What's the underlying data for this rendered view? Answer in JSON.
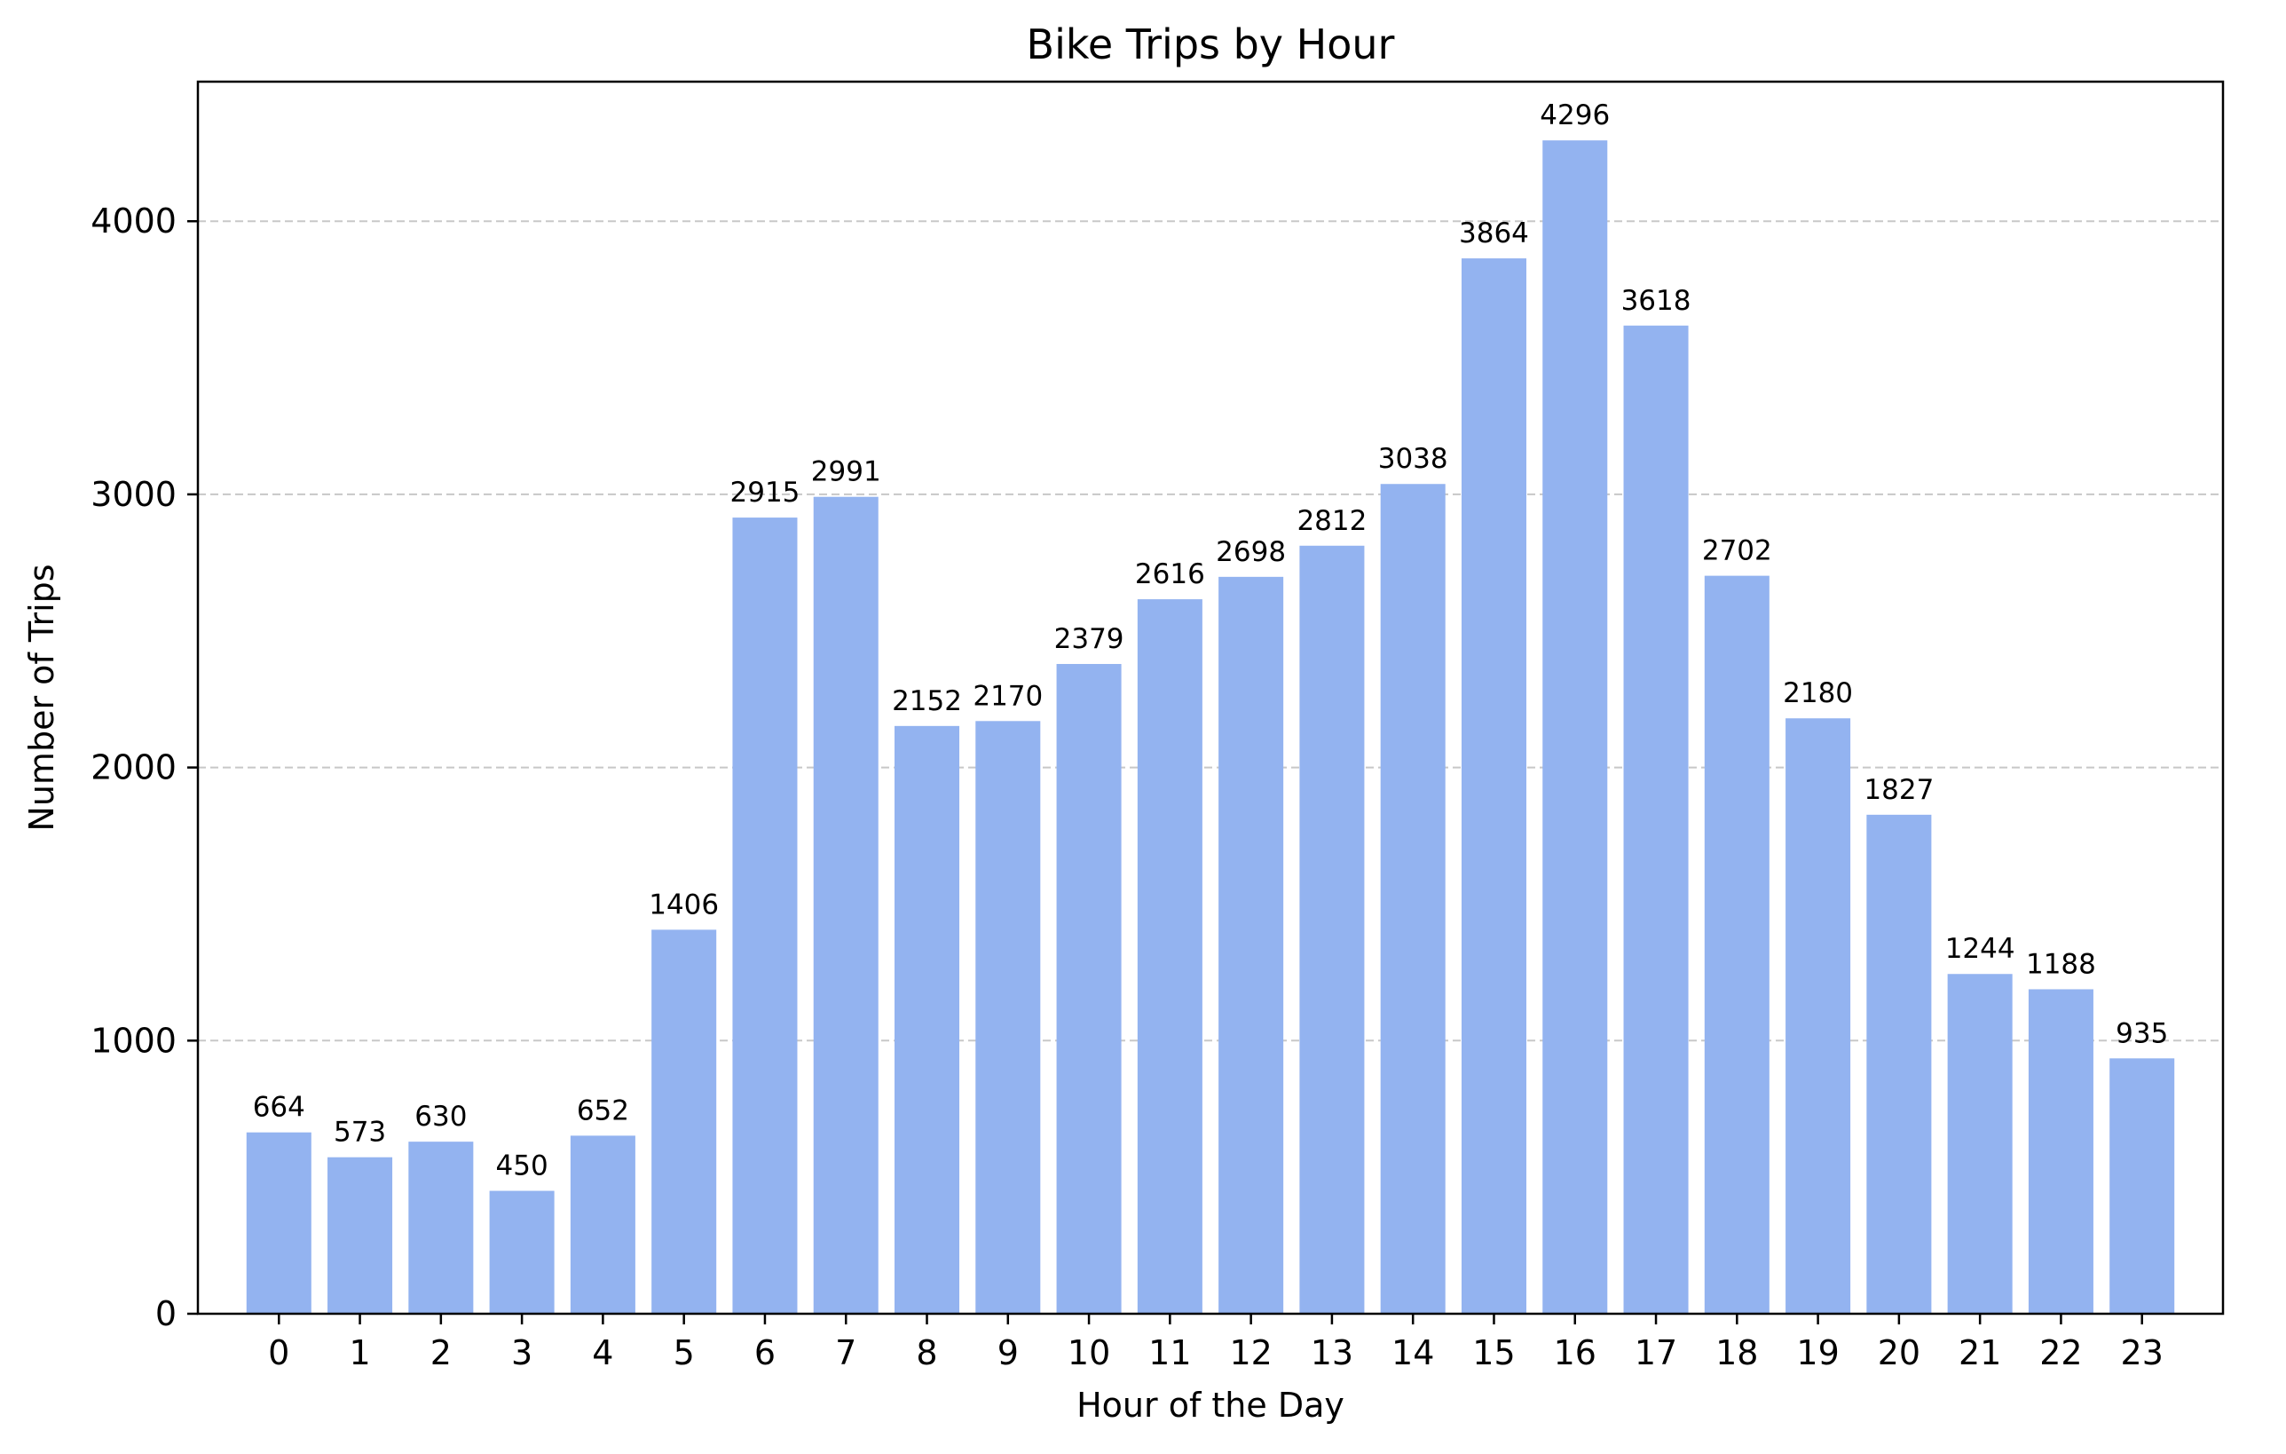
{
  "chart_data": {
    "type": "bar",
    "title": "Bike Trips by Hour",
    "xlabel": "Hour of the Day",
    "ylabel": "Number of Trips",
    "categories": [
      "0",
      "1",
      "2",
      "3",
      "4",
      "5",
      "6",
      "7",
      "8",
      "9",
      "10",
      "11",
      "12",
      "13",
      "14",
      "15",
      "16",
      "17",
      "18",
      "19",
      "20",
      "21",
      "22",
      "23"
    ],
    "values": [
      664,
      573,
      630,
      450,
      652,
      1406,
      2915,
      2991,
      2152,
      2170,
      2379,
      2616,
      2698,
      2812,
      3038,
      3864,
      4296,
      3618,
      2702,
      2180,
      1827,
      1244,
      1188,
      935
    ],
    "ylim": [
      0,
      4511
    ],
    "yticks": [
      0,
      1000,
      2000,
      3000,
      4000
    ],
    "grid": "y-dashed",
    "legend": "none",
    "bar_color": "#93b3f0",
    "grid_color": "#c8c8c8"
  }
}
